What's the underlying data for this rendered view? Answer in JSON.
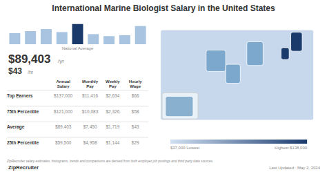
{
  "chart_data": [
    {
      "type": "bar",
      "title": "International Marine Biologist Salary in the United States",
      "values": [
        0.55,
        0.65,
        0.75,
        0.6,
        1.0,
        0.5,
        0.4,
        0.45,
        0.9
      ],
      "colors": [
        "#a8c4e0",
        "#a8c4e0",
        "#a8c4e0",
        "#a8c4e0",
        "#1a3a6b",
        "#a8c4e0",
        "#a8c4e0",
        "#a8c4e0",
        "#a8c4e0"
      ],
      "ylim": [
        0,
        1.3
      ],
      "tick_labels": false,
      "grid": false,
      "annotations": [
        "National Average"
      ]
    },
    {
      "type": "table",
      "categories": [
        "Top Earners",
        "75th Percentile",
        "Average",
        "25th Percentile"
      ],
      "series": [
        {
          "name": "Annual\nSalary",
          "values": [
            137000,
            121000,
            89403,
            59500
          ],
          "value_labels": [
            "$137,000",
            "$121,000",
            "$89,403",
            "$59,500"
          ]
        },
        {
          "name": "Monthly\nPay",
          "values": [
            11416,
            10083,
            7450,
            4958
          ],
          "value_labels": [
            "$11,416",
            "$10,083",
            "$7,450",
            "$4,958"
          ]
        },
        {
          "name": "Weekly\nPay",
          "values": [
            2634,
            2326,
            1719,
            1144
          ],
          "value_labels": [
            "$2,634",
            "$2,326",
            "$1,719",
            "$1,144"
          ]
        },
        {
          "name": "Hourly\nWage",
          "values": [
            66,
            58,
            43,
            29
          ],
          "value_labels": [
            "$66",
            "$58",
            "$43",
            "$29"
          ]
        }
      ],
      "annotations": [
        "$89,403",
        "/yr",
        "$43",
        "/hr"
      ]
    },
    {
      "type": "map",
      "colors": [
        "#c8d8ec",
        "#1a3a6b"
      ],
      "annotations": [
        "$37,000 Lowest",
        "Highest $138,000",
        "ZipRecruiter salary estimates, histograms, trends and comparisons are derived from both employer job postings and third party data sources.",
        "Last Updated : May 2, 2024",
        "ZipRecruiter"
      ]
    }
  ]
}
